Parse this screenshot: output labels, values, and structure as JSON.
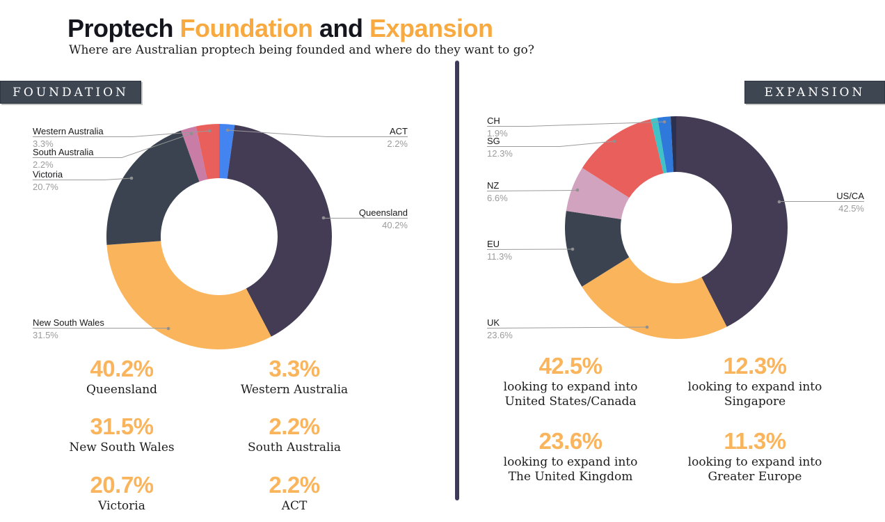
{
  "header": {
    "title": {
      "part1": "Proptech ",
      "part2": "Foundation",
      "part3": " and ",
      "part4": "Expansion"
    },
    "subtitle": "Where are Australian proptech being founded and  where do they want to go?"
  },
  "colors": {
    "accent_orange": "#F8A93F",
    "stat_orange": "#F9B45C",
    "banner_bg": "#3E4652",
    "divider": "#3E3A5C",
    "label_gray": "#9B9B9B",
    "text_dark": "#15151D"
  },
  "foundation": {
    "section_label": "FOUNDATION",
    "callouts": {
      "wa": {
        "name": "Western Australia",
        "pct": "3.3%"
      },
      "sa": {
        "name": "South Australia",
        "pct": "2.2%"
      },
      "vic": {
        "name": "Victoria",
        "pct": "20.7%"
      },
      "nsw": {
        "name": "New South Wales",
        "pct": "31.5%"
      },
      "act": {
        "name": "ACT",
        "pct": "2.2%"
      },
      "qld": {
        "name": "Queensland",
        "pct": "40.2%"
      }
    },
    "stats": [
      {
        "value": "40.2%",
        "label": "Queensland"
      },
      {
        "value": "3.3%",
        "label": "Western Australia"
      },
      {
        "value": "31.5%",
        "label": "New South Wales"
      },
      {
        "value": "2.2%",
        "label": "South Australia"
      },
      {
        "value": "20.7%",
        "label": "Victoria"
      },
      {
        "value": "2.2%",
        "label": "ACT"
      }
    ]
  },
  "expansion": {
    "section_label": "EXPANSION",
    "callouts": {
      "ch": {
        "name": "CH",
        "pct": "1.9%"
      },
      "sg": {
        "name": "SG",
        "pct": "12.3%"
      },
      "nz": {
        "name": "NZ",
        "pct": "6.6%"
      },
      "eu": {
        "name": "EU",
        "pct": "11.3%"
      },
      "uk": {
        "name": "UK",
        "pct": "23.6%"
      },
      "usca": {
        "name": "US/CA",
        "pct": "42.5%"
      }
    },
    "stats": [
      {
        "value": "42.5%",
        "line1": "looking to expand into",
        "line2": "United States/Canada"
      },
      {
        "value": "12.3%",
        "line1": "looking to expand into",
        "line2": "Singapore"
      },
      {
        "value": "23.6%",
        "line1": "looking to expand into",
        "line2": "The United Kingdom"
      },
      {
        "value": "11.3%",
        "line1": "looking to expand into",
        "line2": "Greater Europe"
      }
    ]
  },
  "chart_data": [
    {
      "type": "pie",
      "title": "FOUNDATION",
      "donut": true,
      "legend_position": "none",
      "segments": [
        {
          "label": "ACT",
          "value": 2.2,
          "color": "#4484F0"
        },
        {
          "label": "Queensland",
          "value": 40.2,
          "color": "#443C55"
        },
        {
          "label": "New South Wales",
          "value": 31.5,
          "color": "#F9B45C"
        },
        {
          "label": "Victoria",
          "value": 20.7,
          "color": "#3A434F"
        },
        {
          "label": "South Australia",
          "value": 2.2,
          "color": "#C87CA6"
        },
        {
          "label": "Western Australia",
          "value": 3.3,
          "color": "#E95F5C"
        }
      ]
    },
    {
      "type": "pie",
      "title": "EXPANSION",
      "donut": true,
      "legend_position": "none",
      "segments": [
        {
          "label": "US/CA",
          "value": 42.5,
          "color": "#443C55"
        },
        {
          "label": "UK",
          "value": 23.6,
          "color": "#F9B45C"
        },
        {
          "label": "EU",
          "value": 11.3,
          "color": "#3A434F"
        },
        {
          "label": "NZ",
          "value": 6.6,
          "color": "#D2A3BE"
        },
        {
          "label": "SG",
          "value": 12.3,
          "color": "#E95F5C"
        },
        {
          "label": "",
          "value": 1.0,
          "color": "#3FC3C7"
        },
        {
          "label": "CH",
          "value": 1.9,
          "color": "#2F79DB"
        },
        {
          "label": "",
          "value": 0.8,
          "color": "#2C3150"
        }
      ]
    }
  ]
}
